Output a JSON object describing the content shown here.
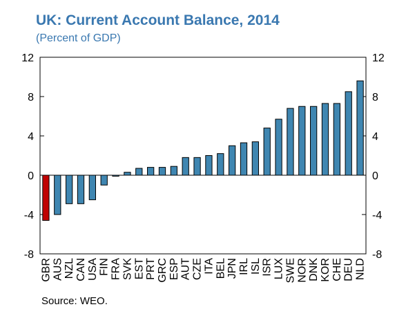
{
  "chart_data": {
    "type": "bar",
    "title": "UK: Current Account Balance, 2014",
    "subtitle": "(Percent of GDP)",
    "source": "Source: WEO.",
    "categories": [
      "GBR",
      "AUS",
      "NZL",
      "CAN",
      "USA",
      "FIN",
      "FRA",
      "SVK",
      "EST",
      "PRT",
      "GRC",
      "ESP",
      "AUT",
      "CZE",
      "ITA",
      "BEL",
      "JPN",
      "IRL",
      "ISL",
      "ISR",
      "LUX",
      "SWE",
      "NOR",
      "DNK",
      "KOR",
      "CHE",
      "DEU",
      "NLD"
    ],
    "values": [
      -4.6,
      -4.0,
      -2.9,
      -2.9,
      -2.5,
      -1.0,
      -0.1,
      0.3,
      0.7,
      0.8,
      0.8,
      0.9,
      1.8,
      1.8,
      2.0,
      2.2,
      3.0,
      3.3,
      3.4,
      4.8,
      5.7,
      6.8,
      7.0,
      7.0,
      7.3,
      7.3,
      8.5,
      9.6
    ],
    "highlight": "GBR",
    "ylim": [
      -8,
      12
    ],
    "yticks": [
      "-8",
      "-4",
      "0",
      "4",
      "8",
      "12"
    ],
    "grid": false,
    "colors": {
      "bar": "#3f86b1",
      "highlight": "#c00000",
      "title": "#3a78b0"
    }
  }
}
